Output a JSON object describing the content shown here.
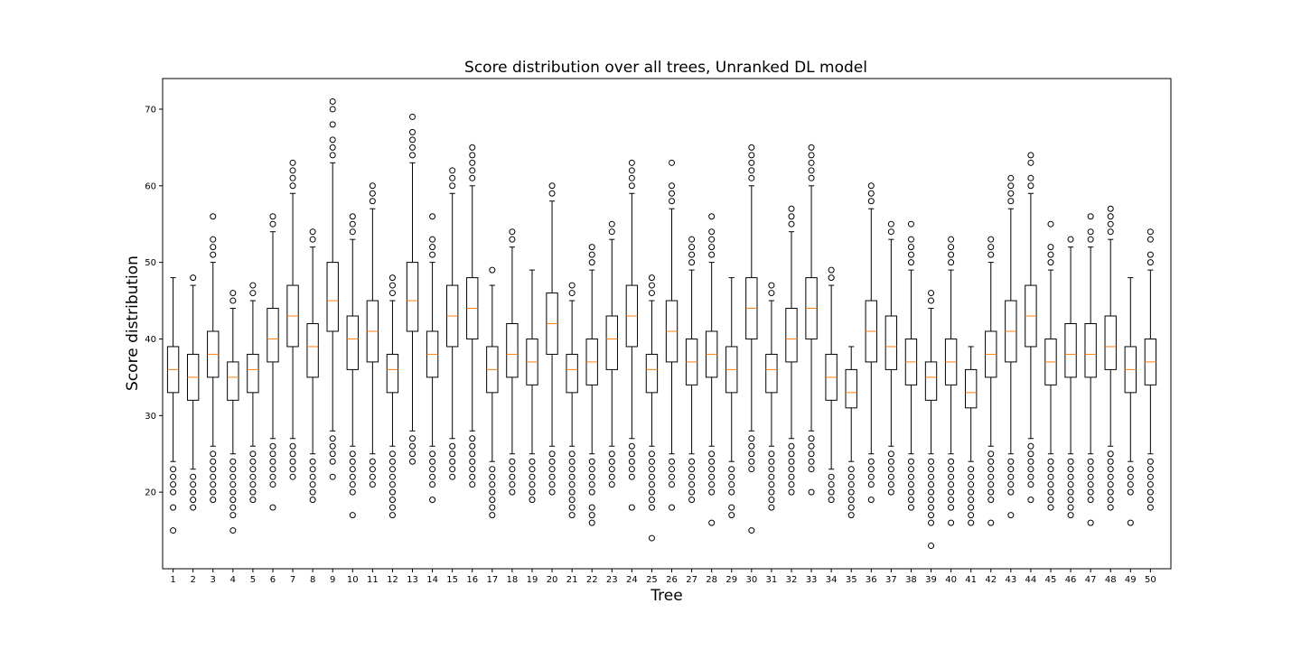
{
  "chart_data": {
    "type": "box",
    "title": "Score distribution over all trees, Unranked DL model",
    "xlabel": "Tree",
    "ylabel": "Score distribution",
    "ylim": [
      10,
      74
    ],
    "yticks": [
      20,
      30,
      40,
      50,
      60,
      70
    ],
    "grid": false,
    "box_color": "#000000",
    "median_color": "#ff7f0e",
    "categories": [
      "1",
      "2",
      "3",
      "4",
      "5",
      "6",
      "7",
      "8",
      "9",
      "10",
      "11",
      "12",
      "13",
      "14",
      "15",
      "16",
      "17",
      "18",
      "19",
      "20",
      "21",
      "22",
      "23",
      "24",
      "25",
      "26",
      "27",
      "28",
      "29",
      "30",
      "31",
      "32",
      "33",
      "34",
      "35",
      "36",
      "37",
      "38",
      "39",
      "40",
      "41",
      "42",
      "43",
      "44",
      "45",
      "46",
      "47",
      "48",
      "49",
      "50"
    ],
    "boxes": [
      {
        "q1": 33,
        "median": 36,
        "q3": 39,
        "whisker_low": 24,
        "whisker_high": 48,
        "outliers": [
          23,
          22,
          21,
          20,
          18,
          15
        ]
      },
      {
        "q1": 32,
        "median": 35,
        "q3": 38,
        "whisker_low": 23,
        "whisker_high": 47,
        "outliers": [
          48,
          22,
          21,
          20,
          19,
          18
        ]
      },
      {
        "q1": 35,
        "median": 38,
        "q3": 41,
        "whisker_low": 26,
        "whisker_high": 50,
        "outliers": [
          56,
          53,
          52,
          51,
          25,
          24,
          23,
          22,
          21,
          20,
          19
        ]
      },
      {
        "q1": 32,
        "median": 35,
        "q3": 37,
        "whisker_low": 25,
        "whisker_high": 44,
        "outliers": [
          46,
          45,
          24,
          23,
          22,
          21,
          20,
          19,
          18,
          17,
          15
        ]
      },
      {
        "q1": 33,
        "median": 36,
        "q3": 38,
        "whisker_low": 26,
        "whisker_high": 45,
        "outliers": [
          47,
          46,
          25,
          24,
          23,
          22,
          21,
          20,
          19
        ]
      },
      {
        "q1": 37,
        "median": 40,
        "q3": 44,
        "whisker_low": 27,
        "whisker_high": 54,
        "outliers": [
          56,
          55,
          26,
          25,
          24,
          23,
          22,
          21,
          18
        ]
      },
      {
        "q1": 39,
        "median": 43,
        "q3": 47,
        "whisker_low": 27,
        "whisker_high": 59,
        "outliers": [
          63,
          62,
          61,
          60,
          26,
          25,
          24,
          23,
          22
        ]
      },
      {
        "q1": 35,
        "median": 39,
        "q3": 42,
        "whisker_low": 25,
        "whisker_high": 52,
        "outliers": [
          54,
          53,
          24,
          23,
          22,
          21,
          20,
          19
        ]
      },
      {
        "q1": 41,
        "median": 45,
        "q3": 50,
        "whisker_low": 28,
        "whisker_high": 63,
        "outliers": [
          71,
          70,
          68,
          66,
          65,
          64,
          27,
          26,
          25,
          24,
          22
        ]
      },
      {
        "q1": 36,
        "median": 40,
        "q3": 43,
        "whisker_low": 26,
        "whisker_high": 53,
        "outliers": [
          56,
          55,
          54,
          25,
          24,
          23,
          22,
          21,
          20,
          17
        ]
      },
      {
        "q1": 37,
        "median": 41,
        "q3": 45,
        "whisker_low": 25,
        "whisker_high": 57,
        "outliers": [
          60,
          59,
          58,
          24,
          23,
          22,
          21
        ]
      },
      {
        "q1": 33,
        "median": 36,
        "q3": 38,
        "whisker_low": 26,
        "whisker_high": 45,
        "outliers": [
          48,
          47,
          46,
          25,
          24,
          23,
          22,
          21,
          20,
          19,
          18,
          17
        ]
      },
      {
        "q1": 41,
        "median": 45,
        "q3": 50,
        "whisker_low": 28,
        "whisker_high": 63,
        "outliers": [
          69,
          67,
          66,
          65,
          64,
          27,
          26,
          25,
          24
        ]
      },
      {
        "q1": 35,
        "median": 38,
        "q3": 41,
        "whisker_low": 26,
        "whisker_high": 50,
        "outliers": [
          56,
          53,
          52,
          51,
          25,
          24,
          23,
          22,
          21,
          19
        ]
      },
      {
        "q1": 39,
        "median": 43,
        "q3": 47,
        "whisker_low": 27,
        "whisker_high": 59,
        "outliers": [
          62,
          61,
          60,
          26,
          25,
          24,
          23,
          22
        ]
      },
      {
        "q1": 40,
        "median": 44,
        "q3": 48,
        "whisker_low": 28,
        "whisker_high": 60,
        "outliers": [
          65,
          64,
          63,
          62,
          61,
          27,
          26,
          25,
          24,
          23,
          22,
          21
        ]
      },
      {
        "q1": 33,
        "median": 36,
        "q3": 39,
        "whisker_low": 24,
        "whisker_high": 47,
        "outliers": [
          49,
          23,
          22,
          21,
          20,
          19,
          18,
          17
        ]
      },
      {
        "q1": 35,
        "median": 38,
        "q3": 42,
        "whisker_low": 25,
        "whisker_high": 52,
        "outliers": [
          54,
          53,
          24,
          23,
          22,
          21,
          20
        ]
      },
      {
        "q1": 34,
        "median": 37,
        "q3": 40,
        "whisker_low": 25,
        "whisker_high": 49,
        "outliers": [
          24,
          23,
          22,
          21,
          20,
          19
        ]
      },
      {
        "q1": 38,
        "median": 42,
        "q3": 46,
        "whisker_low": 26,
        "whisker_high": 58,
        "outliers": [
          60,
          59,
          25,
          24,
          23,
          22,
          21,
          20
        ]
      },
      {
        "q1": 33,
        "median": 36,
        "q3": 38,
        "whisker_low": 26,
        "whisker_high": 45,
        "outliers": [
          47,
          46,
          25,
          24,
          23,
          22,
          21,
          20,
          19,
          18,
          17
        ]
      },
      {
        "q1": 34,
        "median": 37,
        "q3": 40,
        "whisker_low": 25,
        "whisker_high": 49,
        "outliers": [
          52,
          51,
          50,
          24,
          23,
          22,
          21,
          20,
          18,
          17,
          16
        ]
      },
      {
        "q1": 36,
        "median": 40,
        "q3": 43,
        "whisker_low": 26,
        "whisker_high": 53,
        "outliers": [
          55,
          54,
          25,
          24,
          23,
          22,
          21
        ]
      },
      {
        "q1": 39,
        "median": 43,
        "q3": 47,
        "whisker_low": 27,
        "whisker_high": 59,
        "outliers": [
          63,
          62,
          61,
          60,
          26,
          25,
          24,
          23,
          22,
          18
        ]
      },
      {
        "q1": 33,
        "median": 36,
        "q3": 38,
        "whisker_low": 26,
        "whisker_high": 45,
        "outliers": [
          48,
          47,
          46,
          25,
          24,
          23,
          22,
          21,
          20,
          19,
          18,
          14
        ]
      },
      {
        "q1": 37,
        "median": 41,
        "q3": 45,
        "whisker_low": 25,
        "whisker_high": 57,
        "outliers": [
          63,
          60,
          59,
          58,
          24,
          23,
          22,
          21,
          18
        ]
      },
      {
        "q1": 34,
        "median": 37,
        "q3": 40,
        "whisker_low": 25,
        "whisker_high": 49,
        "outliers": [
          53,
          52,
          51,
          50,
          24,
          23,
          22,
          21,
          20,
          19
        ]
      },
      {
        "q1": 35,
        "median": 38,
        "q3": 41,
        "whisker_low": 26,
        "whisker_high": 50,
        "outliers": [
          56,
          54,
          53,
          52,
          51,
          25,
          24,
          23,
          22,
          21,
          20,
          16
        ]
      },
      {
        "q1": 33,
        "median": 36,
        "q3": 39,
        "whisker_low": 24,
        "whisker_high": 48,
        "outliers": [
          23,
          22,
          21,
          20,
          18,
          17
        ]
      },
      {
        "q1": 40,
        "median": 44,
        "q3": 48,
        "whisker_low": 28,
        "whisker_high": 60,
        "outliers": [
          65,
          64,
          63,
          62,
          61,
          27,
          26,
          25,
          24,
          23,
          15
        ]
      },
      {
        "q1": 33,
        "median": 36,
        "q3": 38,
        "whisker_low": 26,
        "whisker_high": 45,
        "outliers": [
          47,
          46,
          25,
          24,
          23,
          22,
          21,
          20,
          19,
          18
        ]
      },
      {
        "q1": 37,
        "median": 40,
        "q3": 44,
        "whisker_low": 27,
        "whisker_high": 54,
        "outliers": [
          57,
          56,
          55,
          26,
          25,
          24,
          23,
          22,
          21,
          20
        ]
      },
      {
        "q1": 40,
        "median": 44,
        "q3": 48,
        "whisker_low": 28,
        "whisker_high": 60,
        "outliers": [
          65,
          64,
          63,
          62,
          61,
          27,
          26,
          25,
          24,
          23,
          20
        ]
      },
      {
        "q1": 32,
        "median": 35,
        "q3": 38,
        "whisker_low": 23,
        "whisker_high": 47,
        "outliers": [
          49,
          48,
          22,
          21,
          20,
          19
        ]
      },
      {
        "q1": 31,
        "median": 33,
        "q3": 36,
        "whisker_low": 24,
        "whisker_high": 39,
        "outliers": [
          23,
          22,
          21,
          20,
          19,
          18,
          17
        ]
      },
      {
        "q1": 37,
        "median": 41,
        "q3": 45,
        "whisker_low": 25,
        "whisker_high": 57,
        "outliers": [
          60,
          59,
          58,
          24,
          23,
          22,
          21,
          19
        ]
      },
      {
        "q1": 36,
        "median": 39,
        "q3": 43,
        "whisker_low": 26,
        "whisker_high": 53,
        "outliers": [
          55,
          54,
          25,
          24,
          23,
          22,
          21,
          20
        ]
      },
      {
        "q1": 34,
        "median": 37,
        "q3": 40,
        "whisker_low": 25,
        "whisker_high": 49,
        "outliers": [
          55,
          53,
          52,
          51,
          50,
          24,
          23,
          22,
          21,
          20,
          19,
          18
        ]
      },
      {
        "q1": 32,
        "median": 35,
        "q3": 37,
        "whisker_low": 25,
        "whisker_high": 44,
        "outliers": [
          46,
          45,
          24,
          23,
          22,
          21,
          20,
          19,
          18,
          17,
          16,
          13
        ]
      },
      {
        "q1": 34,
        "median": 37,
        "q3": 40,
        "whisker_low": 25,
        "whisker_high": 49,
        "outliers": [
          53,
          52,
          51,
          50,
          24,
          23,
          22,
          21,
          20,
          19,
          18,
          16
        ]
      },
      {
        "q1": 31,
        "median": 33,
        "q3": 36,
        "whisker_low": 24,
        "whisker_high": 39,
        "outliers": [
          23,
          22,
          21,
          20,
          19,
          18,
          17,
          16
        ]
      },
      {
        "q1": 35,
        "median": 38,
        "q3": 41,
        "whisker_low": 26,
        "whisker_high": 50,
        "outliers": [
          53,
          52,
          51,
          25,
          24,
          23,
          22,
          21,
          20,
          19,
          16
        ]
      },
      {
        "q1": 37,
        "median": 41,
        "q3": 45,
        "whisker_low": 25,
        "whisker_high": 57,
        "outliers": [
          61,
          60,
          59,
          58,
          24,
          23,
          22,
          21,
          20,
          17
        ]
      },
      {
        "q1": 39,
        "median": 43,
        "q3": 47,
        "whisker_low": 27,
        "whisker_high": 59,
        "outliers": [
          64,
          63,
          61,
          60,
          26,
          25,
          24,
          23,
          22,
          21,
          19
        ]
      },
      {
        "q1": 34,
        "median": 37,
        "q3": 40,
        "whisker_low": 25,
        "whisker_high": 49,
        "outliers": [
          55,
          52,
          51,
          50,
          24,
          23,
          22,
          21,
          20,
          19,
          18
        ]
      },
      {
        "q1": 35,
        "median": 38,
        "q3": 42,
        "whisker_low": 25,
        "whisker_high": 52,
        "outliers": [
          53,
          24,
          23,
          22,
          21,
          20,
          19,
          18,
          17
        ]
      },
      {
        "q1": 35,
        "median": 38,
        "q3": 42,
        "whisker_low": 25,
        "whisker_high": 52,
        "outliers": [
          56,
          54,
          53,
          24,
          23,
          22,
          21,
          20,
          19,
          16
        ]
      },
      {
        "q1": 36,
        "median": 39,
        "q3": 43,
        "whisker_low": 26,
        "whisker_high": 53,
        "outliers": [
          57,
          56,
          55,
          54,
          25,
          24,
          23,
          22,
          21,
          20,
          19,
          18
        ]
      },
      {
        "q1": 33,
        "median": 36,
        "q3": 39,
        "whisker_low": 24,
        "whisker_high": 48,
        "outliers": [
          23,
          22,
          21,
          20,
          16
        ]
      },
      {
        "q1": 34,
        "median": 37,
        "q3": 40,
        "whisker_low": 25,
        "whisker_high": 49,
        "outliers": [
          54,
          53,
          51,
          50,
          24,
          23,
          22,
          21,
          20,
          19,
          18
        ]
      }
    ]
  }
}
